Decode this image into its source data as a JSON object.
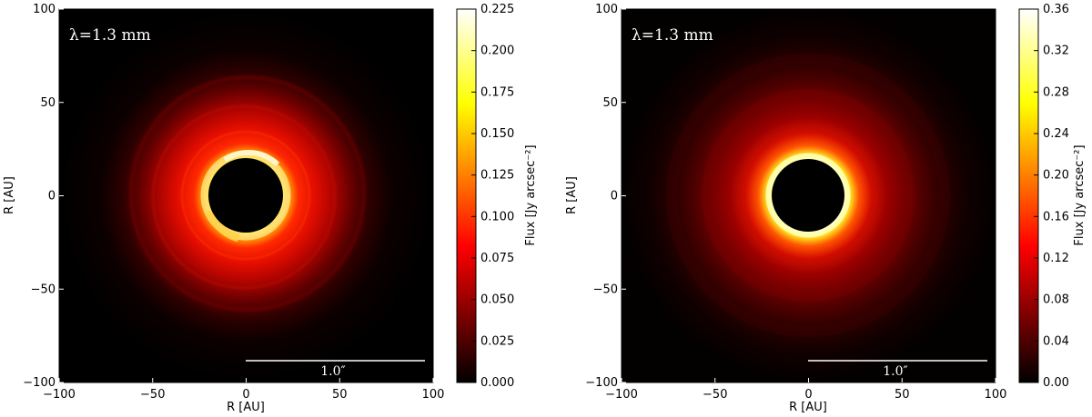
{
  "chart_data": [
    {
      "type": "heatmap",
      "annotation": "λ=1.3 mm",
      "xlabel": "R [AU]",
      "ylabel": "R [AU]",
      "xlim": [
        -100,
        100
      ],
      "ylim": [
        -100,
        100
      ],
      "xticks": [
        -100,
        -50,
        0,
        50,
        100
      ],
      "yticks": [
        -100,
        -50,
        0,
        50,
        100
      ],
      "scale_bar": {
        "label": "1.0″",
        "x_start": 0,
        "x_end": 96,
        "y": -88
      },
      "colorbar": {
        "label": "Flux [Jy arcsec⁻²]",
        "colormap": "hot",
        "range": [
          0,
          0.225
        ],
        "ticks": [
          0.0,
          0.025,
          0.05,
          0.075,
          0.1,
          0.125,
          0.15,
          0.175,
          0.2,
          0.225
        ],
        "tick_labels": [
          "0.000",
          "0.025",
          "0.050",
          "0.075",
          "0.100",
          "0.125",
          "0.150",
          "0.175",
          "0.200",
          "0.225"
        ]
      },
      "image": {
        "inner_hole_radius": 20,
        "ring_peak_radius": 22,
        "ring_peak_flux": 0.225,
        "outer_extent_radius": 70,
        "ring_style": "clumpy"
      }
    },
    {
      "type": "heatmap",
      "annotation": "λ=1.3 mm",
      "xlabel": "R [AU]",
      "ylabel": "R [AU]",
      "xlim": [
        -100,
        100
      ],
      "ylim": [
        -100,
        100
      ],
      "xticks": [
        -100,
        -50,
        0,
        50,
        100
      ],
      "yticks": [
        -100,
        -50,
        0,
        50,
        100
      ],
      "scale_bar": {
        "label": "1.0″",
        "x_start": 0,
        "x_end": 96,
        "y": -88
      },
      "colorbar": {
        "label": "Flux [Jy arcsec⁻²]",
        "colormap": "hot",
        "range": [
          0,
          0.36
        ],
        "ticks": [
          0.0,
          0.04,
          0.08,
          0.12,
          0.16,
          0.2,
          0.24,
          0.28,
          0.32,
          0.36
        ],
        "tick_labels": [
          "0.00",
          "0.04",
          "0.08",
          "0.12",
          "0.16",
          "0.20",
          "0.24",
          "0.28",
          "0.32",
          "0.36"
        ]
      },
      "image": {
        "inner_hole_radius": 19,
        "ring_peak_radius": 21,
        "ring_peak_flux": 0.36,
        "outer_extent_radius": 85,
        "ring_style": "smooth"
      }
    }
  ]
}
